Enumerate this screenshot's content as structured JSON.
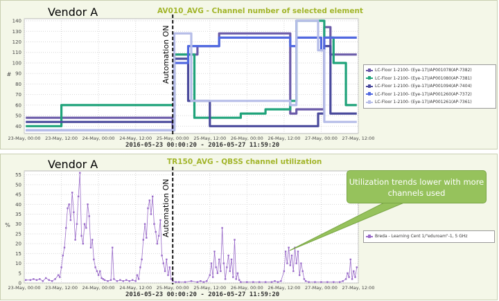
{
  "panel1": {
    "vendor": "Vendor A",
    "title": "AV010_AVG - Channel number of selected element",
    "range": "2016-05-23 00:00:20 - 2016-05-27 11:59:20",
    "automation_label": "Automation ON",
    "legend": [
      {
        "label": "LC-Floor 1-2100-          (Eye-17)/AP001078(AP-7382)",
        "color": "#6a5aa8"
      },
      {
        "label": "LC-Floor 1-2100-          (Eye-17)/AP001080(AP-7381)",
        "color": "#1fa37a"
      },
      {
        "label": "LC-Floor 1-2100-          (Eye-17)/AP001094(AP-7404)",
        "color": "#4a4a9c"
      },
      {
        "label": "LC-Floor 1-2100-          (Eye-17)/AP001260(AP-7372)",
        "color": "#5068e0"
      },
      {
        "label": "LC-Floor 1-2100-          (Eye-17)/AP001261(AP-7361)",
        "color": "#b6bde8"
      }
    ]
  },
  "panel2": {
    "vendor": "Vendor A",
    "title": "TR150_AVG - QBSS channel utilization",
    "range": "2016-05-23 00:00:20 - 2016-05-27 11:59:20",
    "automation_label": "Automation ON",
    "legend": [
      {
        "label": "Breda - Learning Cent 1/\"eduroam\"-1, 5 GHz",
        "color": "#9a6bc9"
      }
    ]
  },
  "callout": {
    "text": "Utilization trends lower with more channels used"
  },
  "chart_data": [
    {
      "type": "line",
      "title": "AV010_AVG - Channel number of selected element",
      "xlabel": "2016-05-23 00:00:20 - 2016-05-27 11:59:20",
      "ylabel": "#",
      "ylim": [
        33,
        142
      ],
      "yticks": [
        40,
        50,
        60,
        70,
        80,
        90,
        100,
        110,
        120,
        130,
        140
      ],
      "xlim": [
        0,
        108
      ],
      "xticks": [
        {
          "x": 0,
          "label": "23-May, 00:00"
        },
        {
          "x": 12,
          "label": "23-May, 12:00"
        },
        {
          "x": 24,
          "label": "24-May, 00:00"
        },
        {
          "x": 36,
          "label": "24-May, 12:00"
        },
        {
          "x": 48,
          "label": "25-May, 00:00"
        },
        {
          "x": 60,
          "label": "25-May, 12:00"
        },
        {
          "x": 72,
          "label": "26-May, 00:00"
        },
        {
          "x": 84,
          "label": "26-May, 12:00"
        },
        {
          "x": 96,
          "label": "27-May, 00:00"
        },
        {
          "x": 108,
          "label": "27-May, 12:00"
        }
      ],
      "marker_x": 48,
      "series": [
        {
          "name": "AP001078(AP-7382)",
          "color": "#6a5aa8",
          "points": [
            [
              0.5,
              48
            ],
            [
              48,
              48
            ],
            [
              48,
              36
            ],
            [
              48.5,
              36
            ],
            [
              48.5,
              108
            ],
            [
              56,
              108
            ],
            [
              56,
              116
            ],
            [
              63,
              116
            ],
            [
              63,
              128
            ],
            [
              86,
              128
            ],
            [
              86,
              52
            ],
            [
              88,
              52
            ],
            [
              88,
              56
            ],
            [
              97,
              56
            ],
            [
              97,
              134
            ],
            [
              99,
              134
            ],
            [
              99,
              108
            ],
            [
              107.5,
              108
            ]
          ]
        },
        {
          "name": "AP001080(AP-7381)",
          "color": "#1fa37a",
          "points": [
            [
              0.5,
              40
            ],
            [
              12,
              40
            ],
            [
              12,
              60
            ],
            [
              48,
              60
            ],
            [
              48,
              60
            ],
            [
              48.5,
              60
            ],
            [
              48.5,
              108
            ],
            [
              55,
              108
            ],
            [
              55,
              48
            ],
            [
              70,
              48
            ],
            [
              70,
              52
            ],
            [
              78,
              52
            ],
            [
              78,
              56
            ],
            [
              86,
              56
            ],
            [
              86,
              64
            ],
            [
              88,
              64
            ],
            [
              88,
              140
            ],
            [
              97,
              140
            ],
            [
              97,
              124
            ],
            [
              100,
              124
            ],
            [
              100,
              100
            ],
            [
              104,
              100
            ],
            [
              104,
              60
            ],
            [
              107.5,
              60
            ]
          ]
        },
        {
          "name": "AP001094(AP-7404)",
          "color": "#4a4a9c",
          "points": [
            [
              0.5,
              44
            ],
            [
              48,
              44
            ],
            [
              48,
              44
            ],
            [
              48.5,
              44
            ],
            [
              48.5,
              104
            ],
            [
              53,
              104
            ],
            [
              53,
              64
            ],
            [
              60,
              64
            ],
            [
              60,
              40
            ],
            [
              95,
              40
            ],
            [
              95,
              52
            ],
            [
              97,
              52
            ],
            [
              97,
              116
            ],
            [
              99,
              116
            ],
            [
              99,
              52
            ],
            [
              107.5,
              52
            ]
          ]
        },
        {
          "name": "AP001260(AP-7372)",
          "color": "#5068e0",
          "points": [
            [
              0.5,
              36
            ],
            [
              48,
              36
            ],
            [
              48,
              36
            ],
            [
              48.5,
              36
            ],
            [
              48.5,
              100
            ],
            [
              53,
              100
            ],
            [
              53,
              116
            ],
            [
              63,
              116
            ],
            [
              63,
              124
            ],
            [
              86,
              124
            ],
            [
              86,
              116
            ],
            [
              88,
              116
            ],
            [
              88,
              124
            ],
            [
              96,
              124
            ],
            [
              96,
              112
            ],
            [
              97,
              112
            ],
            [
              97,
              124
            ],
            [
              107.5,
              124
            ]
          ]
        },
        {
          "name": "AP001261(AP-7361)",
          "color": "#b6bde8",
          "points": [
            [
              0.5,
              36
            ],
            [
              48,
              36
            ],
            [
              48,
              36
            ],
            [
              48.5,
              36
            ],
            [
              48.5,
              128
            ],
            [
              54,
              128
            ],
            [
              54,
              64
            ],
            [
              78,
              64
            ],
            [
              78,
              64
            ],
            [
              86,
              64
            ],
            [
              86,
              60
            ],
            [
              88,
              60
            ],
            [
              88,
              140
            ],
            [
              95,
              140
            ],
            [
              95,
              112
            ],
            [
              97,
              112
            ],
            [
              97,
              44
            ],
            [
              107.5,
              44
            ]
          ]
        }
      ]
    },
    {
      "type": "line",
      "title": "TR150_AVG - QBSS channel utilization",
      "xlabel": "2016-05-23 00:00:20 - 2016-05-27 11:59:20",
      "ylabel": "%",
      "ylim": [
        0,
        57
      ],
      "yticks": [
        0,
        5,
        10,
        15,
        20,
        25,
        30,
        35,
        40,
        45,
        50,
        55
      ],
      "xlim": [
        0,
        108
      ],
      "xticks": [
        {
          "x": 0,
          "label": "23-May, 00:00"
        },
        {
          "x": 12,
          "label": "23-May, 12:00"
        },
        {
          "x": 24,
          "label": "24-May, 00:00"
        },
        {
          "x": 36,
          "label": "24-May, 12:00"
        },
        {
          "x": 48,
          "label": "25-May, 00:00"
        },
        {
          "x": 60,
          "label": "25-May, 12:00"
        },
        {
          "x": 72,
          "label": "26-May, 00:00"
        },
        {
          "x": 84,
          "label": "26-May, 12:00"
        },
        {
          "x": 96,
          "label": "27-May, 00:00"
        },
        {
          "x": 108,
          "label": "27-May, 12:00"
        }
      ],
      "marker_x": 48,
      "series": [
        {
          "name": "Breda - Learning Cent 1/\"eduroam\"-1, 5 GHz",
          "color": "#9a6bc9",
          "points": [
            [
              0.5,
              1.5
            ],
            [
              2,
              1.5
            ],
            [
              3,
              2
            ],
            [
              4,
              1.5
            ],
            [
              5,
              2
            ],
            [
              6,
              1
            ],
            [
              7,
              2.5
            ],
            [
              8,
              1.5
            ],
            [
              9,
              1
            ],
            [
              10,
              2
            ],
            [
              11,
              4
            ],
            [
              11.5,
              3
            ],
            [
              12,
              8
            ],
            [
              12.5,
              14
            ],
            [
              13,
              18
            ],
            [
              13.5,
              28
            ],
            [
              14,
              38
            ],
            [
              14.5,
              40
            ],
            [
              15,
              32
            ],
            [
              15.5,
              46
            ],
            [
              16,
              36
            ],
            [
              16.5,
              22
            ],
            [
              17,
              30
            ],
            [
              17.5,
              44
            ],
            [
              18,
              56
            ],
            [
              18.5,
              24
            ],
            [
              19,
              20
            ],
            [
              19.5,
              30
            ],
            [
              20,
              28
            ],
            [
              20.5,
              40
            ],
            [
              21,
              34
            ],
            [
              21.5,
              18
            ],
            [
              22,
              22
            ],
            [
              22.5,
              12
            ],
            [
              23,
              8
            ],
            [
              23.5,
              6
            ],
            [
              24,
              4
            ],
            [
              24.5,
              6
            ],
            [
              25,
              2.5
            ],
            [
              25.5,
              2
            ],
            [
              26,
              1.5
            ],
            [
              27,
              1
            ],
            [
              28,
              1.5
            ],
            [
              28.5,
              18
            ],
            [
              29,
              2
            ],
            [
              30,
              1
            ],
            [
              31,
              1.5
            ],
            [
              32,
              1
            ],
            [
              33,
              1.5
            ],
            [
              34,
              1
            ],
            [
              35,
              1.5
            ],
            [
              36,
              1
            ],
            [
              36.5,
              4
            ],
            [
              37,
              2
            ],
            [
              37.5,
              8
            ],
            [
              38,
              12
            ],
            [
              38.5,
              22
            ],
            [
              39,
              30
            ],
            [
              39.5,
              23
            ],
            [
              40,
              38
            ],
            [
              40.5,
              42
            ],
            [
              41,
              35
            ],
            [
              41.5,
              44
            ],
            [
              42,
              30
            ],
            [
              42.5,
              26
            ],
            [
              43,
              20
            ],
            [
              43.5,
              24
            ],
            [
              44,
              32
            ],
            [
              44.5,
              14
            ],
            [
              45,
              10
            ],
            [
              45.5,
              6
            ],
            [
              46,
              12
            ],
            [
              46.5,
              4
            ],
            [
              47,
              8
            ],
            [
              47.5,
              2
            ],
            [
              48,
              1
            ],
            [
              49,
              0.5
            ],
            [
              50,
              0.5
            ],
            [
              52,
              0.5
            ],
            [
              54,
              1
            ],
            [
              56,
              0.5
            ],
            [
              57,
              1
            ],
            [
              58,
              0.5
            ],
            [
              59,
              1
            ],
            [
              60,
              4
            ],
            [
              60.5,
              10
            ],
            [
              61,
              3
            ],
            [
              61.5,
              16
            ],
            [
              62,
              8
            ],
            [
              62.5,
              5
            ],
            [
              63,
              12
            ],
            [
              63.5,
              6
            ],
            [
              64,
              28
            ],
            [
              64.5,
              10
            ],
            [
              65,
              2
            ],
            [
              65.5,
              8
            ],
            [
              66,
              14
            ],
            [
              66.5,
              6
            ],
            [
              67,
              12
            ],
            [
              67.5,
              3
            ],
            [
              68,
              22
            ],
            [
              68.5,
              2
            ],
            [
              69,
              5
            ],
            [
              69.5,
              1.5
            ],
            [
              70,
              0.5
            ],
            [
              72,
              0.5
            ],
            [
              74,
              0.5
            ],
            [
              76,
              0.5
            ],
            [
              78,
              0.5
            ],
            [
              80,
              0.5
            ],
            [
              81,
              1
            ],
            [
              82,
              0.5
            ],
            [
              83,
              1
            ],
            [
              84,
              6
            ],
            [
              84.5,
              16
            ],
            [
              85,
              10
            ],
            [
              85.5,
              18
            ],
            [
              86,
              9
            ],
            [
              86.5,
              14
            ],
            [
              87,
              6
            ],
            [
              87.5,
              18
            ],
            [
              88,
              10
            ],
            [
              88.5,
              16
            ],
            [
              89,
              4
            ],
            [
              89.5,
              10
            ],
            [
              90,
              6
            ],
            [
              90.5,
              2
            ],
            [
              91,
              1
            ],
            [
              92,
              0.5
            ],
            [
              94,
              0.5
            ],
            [
              96,
              0.5
            ],
            [
              98,
              0.5
            ],
            [
              100,
              0.5
            ],
            [
              102,
              0.5
            ],
            [
              103,
              1
            ],
            [
              104,
              2
            ],
            [
              104.5,
              5
            ],
            [
              105,
              3
            ],
            [
              105.5,
              12
            ],
            [
              106,
              2
            ],
            [
              106.5,
              6
            ],
            [
              107,
              3
            ],
            [
              107.5,
              8
            ]
          ]
        }
      ]
    }
  ]
}
